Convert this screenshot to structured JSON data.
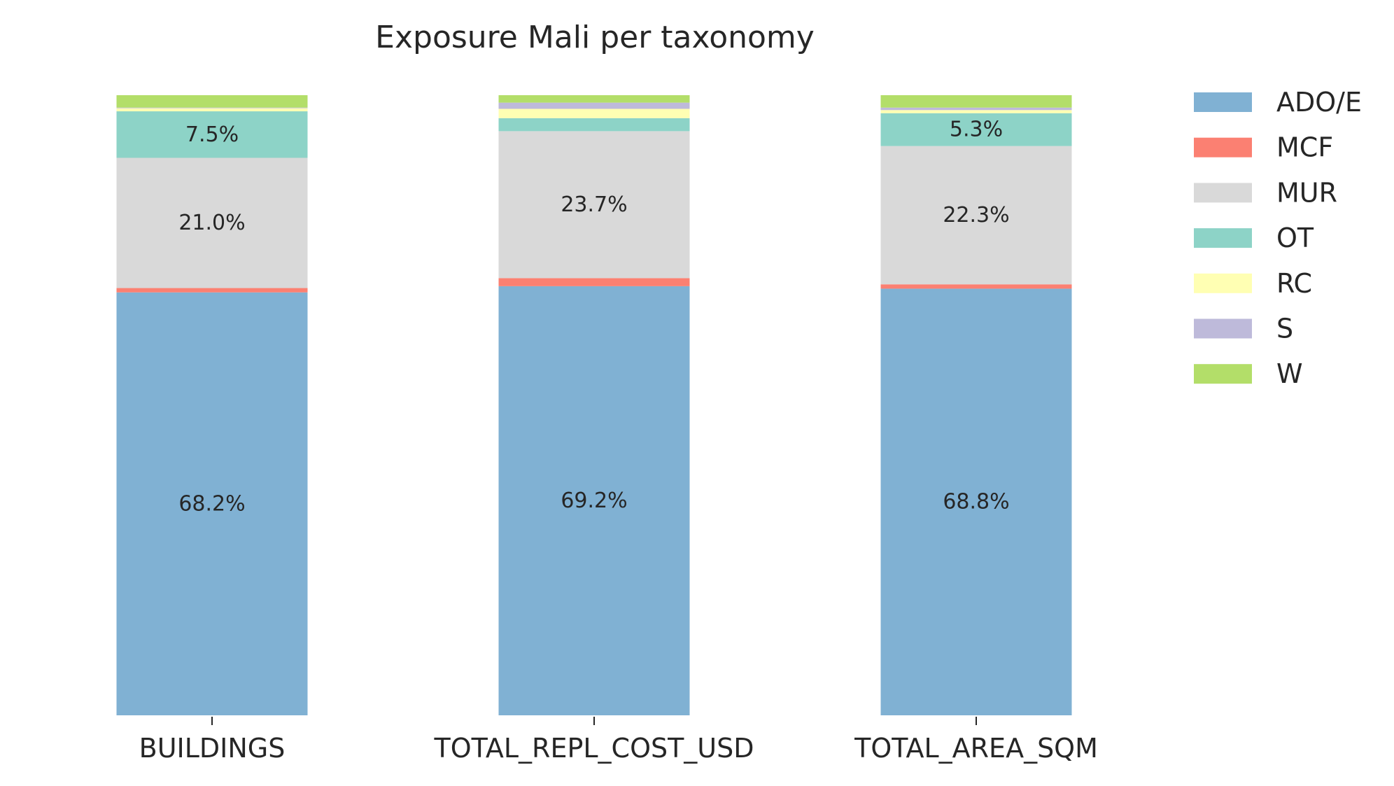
{
  "chart_data": {
    "type": "bar",
    "stacked": true,
    "normalized": true,
    "title": "Exposure Mali per taxonomy",
    "xlabel": "",
    "ylabel": "",
    "ylim": [
      0,
      100
    ],
    "grid": false,
    "legend_position": "right",
    "categories": [
      "BUILDINGS",
      "TOTAL_REPL_COST_USD",
      "TOTAL_AREA_SQM"
    ],
    "series": [
      {
        "name": "ADO/E",
        "color": "#80b1d3",
        "values": [
          68.2,
          69.2,
          68.8
        ]
      },
      {
        "name": "MCF",
        "color": "#fb8072",
        "values": [
          0.7,
          1.3,
          0.7
        ]
      },
      {
        "name": "MUR",
        "color": "#d9d9d9",
        "values": [
          21.0,
          23.7,
          22.3
        ]
      },
      {
        "name": "OT",
        "color": "#8dd3c7",
        "values": [
          7.5,
          2.1,
          5.3
        ]
      },
      {
        "name": "RC",
        "color": "#ffffb3",
        "values": [
          0.5,
          1.5,
          0.5
        ]
      },
      {
        "name": "S",
        "color": "#bebada",
        "values": [
          0.1,
          1.0,
          0.4
        ]
      },
      {
        "name": "W",
        "color": "#b3de69",
        "values": [
          2.0,
          1.2,
          2.0
        ]
      }
    ],
    "data_labels": [
      {
        "category": "BUILDINGS",
        "series": "ADO/E",
        "text": "68.2%"
      },
      {
        "category": "BUILDINGS",
        "series": "MUR",
        "text": "21.0%"
      },
      {
        "category": "BUILDINGS",
        "series": "OT",
        "text": "7.5%"
      },
      {
        "category": "TOTAL_REPL_COST_USD",
        "series": "ADO/E",
        "text": "69.2%"
      },
      {
        "category": "TOTAL_REPL_COST_USD",
        "series": "MUR",
        "text": "23.7%"
      },
      {
        "category": "TOTAL_AREA_SQM",
        "series": "ADO/E",
        "text": "68.8%"
      },
      {
        "category": "TOTAL_AREA_SQM",
        "series": "MUR",
        "text": "22.3%"
      },
      {
        "category": "TOTAL_AREA_SQM",
        "series": "OT",
        "text": "5.3%"
      }
    ]
  }
}
